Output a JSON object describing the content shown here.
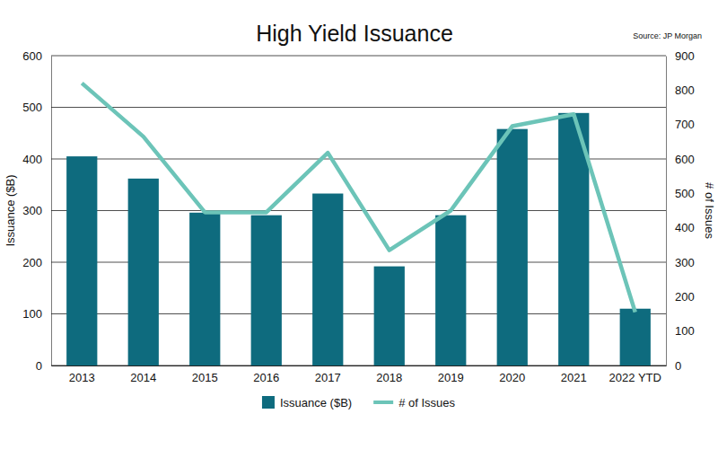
{
  "chart_data": {
    "type": "bar",
    "title": "High Yield Issuance",
    "annotations": [
      "Source: JP Morgan"
    ],
    "y_label": "Issuance ($B)",
    "y2_label": "# of Issues",
    "categories": [
      "2013",
      "2014",
      "2015",
      "2016",
      "2017",
      "2018",
      "2019",
      "2020",
      "2021",
      "2022 YTD"
    ],
    "series": [
      {
        "name": "Issuance ($B)",
        "type": "bar",
        "color": "#0e6b7e",
        "values": [
          405,
          362,
          296,
          291,
          333,
          192,
          291,
          458,
          489,
          110
        ]
      },
      {
        "name": "# of Issues",
        "type": "line",
        "color": "#6cc4b8",
        "axis": "y2",
        "values": [
          820,
          665,
          445,
          445,
          618,
          335,
          450,
          695,
          730,
          155
        ]
      }
    ],
    "ylim": [
      0,
      600
    ],
    "yticks": [
      0,
      100,
      200,
      300,
      400,
      500,
      600
    ],
    "y2lim": [
      0,
      900
    ],
    "y2ticks": [
      0,
      100,
      200,
      300,
      400,
      500,
      600,
      700,
      800,
      900
    ],
    "grid": true,
    "legend": "bottom"
  }
}
